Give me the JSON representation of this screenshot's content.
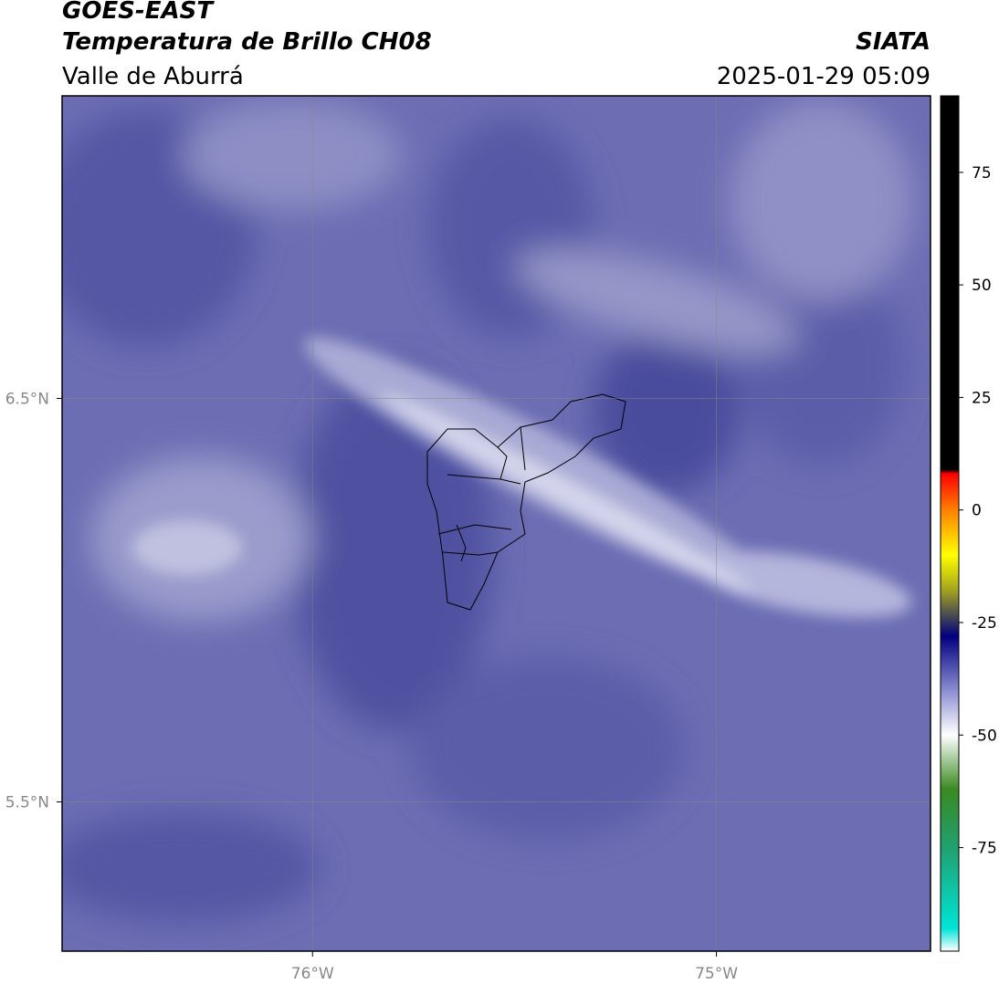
{
  "chart_data": {
    "type": "map",
    "title": "GOES-EAST",
    "subtitle": "Temperatura de Brillo CH08",
    "region": "Valle de Aburrá",
    "source": "SIATA",
    "datetime": "2025-01-29 05:09",
    "xlim": [
      -76.62,
      -74.47
    ],
    "ylim": [
      5.13,
      7.25
    ],
    "xticks": [
      {
        "value": -76,
        "label": "76°W"
      },
      {
        "value": -75,
        "label": "75°W"
      }
    ],
    "yticks": [
      {
        "value": 6.5,
        "label": "6.5°N"
      },
      {
        "value": 5.5,
        "label": "5.5°N"
      }
    ],
    "grid": true,
    "colorbar": {
      "lim": [
        -98,
        92
      ],
      "ticks": [
        75,
        50,
        25,
        0,
        -25,
        -50,
        -75
      ],
      "stops": [
        {
          "value": -98,
          "color": "#ffffff"
        },
        {
          "value": -93,
          "color": "#00e5d8"
        },
        {
          "value": -75,
          "color": "#20a070"
        },
        {
          "value": -62,
          "color": "#3a8a20"
        },
        {
          "value": -50,
          "color": "#ffffff"
        },
        {
          "value": -40,
          "color": "#8a8cd0"
        },
        {
          "value": -28,
          "color": "#000080"
        },
        {
          "value": -18,
          "color": "#a0a020"
        },
        {
          "value": -10,
          "color": "#ffff00"
        },
        {
          "value": 0,
          "color": "#ff8000"
        },
        {
          "value": 8,
          "color": "#ff0000"
        },
        {
          "value": 9,
          "color": "#000000"
        },
        {
          "value": 92,
          "color": "#000000"
        }
      ]
    }
  }
}
